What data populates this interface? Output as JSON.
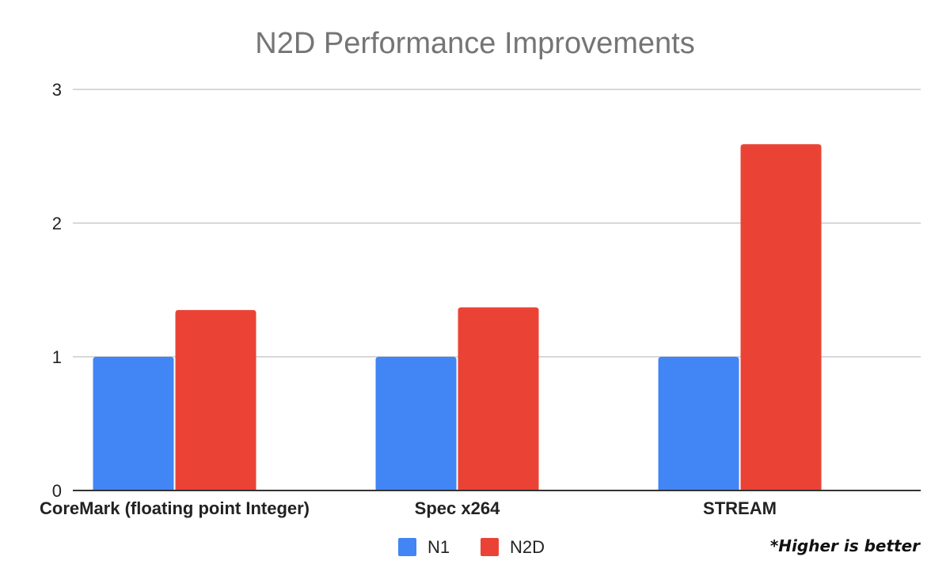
{
  "chart_data": {
    "type": "bar",
    "title": "N2D Performance Improvements",
    "categories": [
      "CoreMark (floating point Integer)",
      "Spec x264",
      "STREAM"
    ],
    "series": [
      {
        "name": "N1",
        "color": "#4285f4",
        "values": [
          1.0,
          1.0,
          1.0
        ]
      },
      {
        "name": "N2D",
        "color": "#ea4335",
        "values": [
          1.35,
          1.37,
          2.59
        ]
      }
    ],
    "xlabel": "",
    "ylabel": "",
    "ylim": [
      0,
      3
    ],
    "yticks": [
      "0",
      "1",
      "2",
      "3"
    ],
    "grid": true,
    "legend": "bottom-center",
    "annotation": "*Higher is better"
  }
}
